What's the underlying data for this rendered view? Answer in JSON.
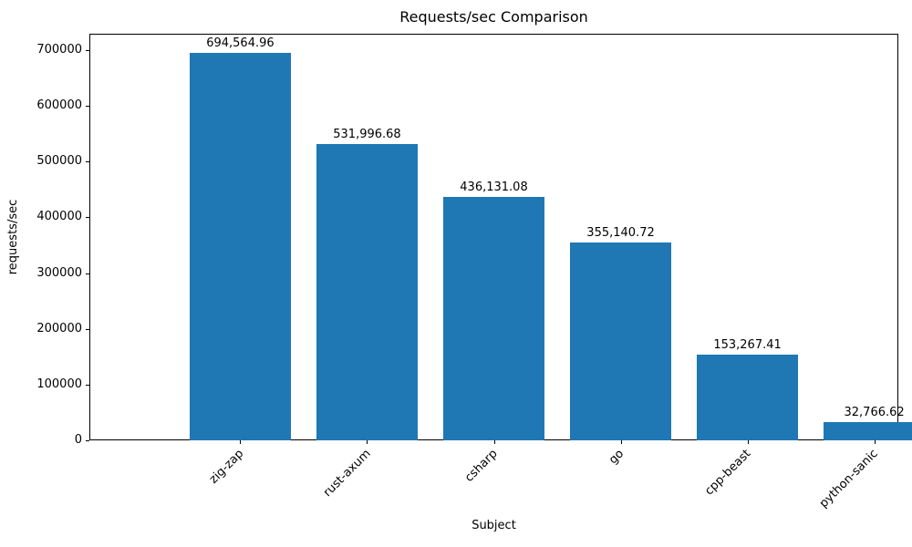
{
  "figure": {
    "background": "#ffffff",
    "text_color": "#000000",
    "spine_color": "#000000"
  },
  "chart_data": {
    "type": "bar",
    "title": "Requests/sec Comparison",
    "xlabel": "Subject",
    "ylabel": "requests/sec",
    "categories": [
      "zig-zap",
      "rust-axum",
      "csharp",
      "go",
      "cpp-beast",
      "python-sanic"
    ],
    "values": [
      694564.96,
      531996.68,
      436131.08,
      355140.72,
      153267.41,
      32766.62
    ],
    "bar_labels": [
      "694,564.96",
      "531,996.68",
      "436,131.08",
      "355,140.72",
      "153,267.41",
      "32,766.62"
    ],
    "yticks": [
      0,
      100000,
      200000,
      300000,
      400000,
      500000,
      600000,
      700000
    ],
    "ytick_labels": [
      "0",
      "100000",
      "200000",
      "300000",
      "400000",
      "500000",
      "600000",
      "700000"
    ],
    "ylim": [
      0,
      729293
    ],
    "bar_color": "#1f77b4",
    "grid": false,
    "legend": null,
    "x_tick_rotation_deg": 45
  }
}
